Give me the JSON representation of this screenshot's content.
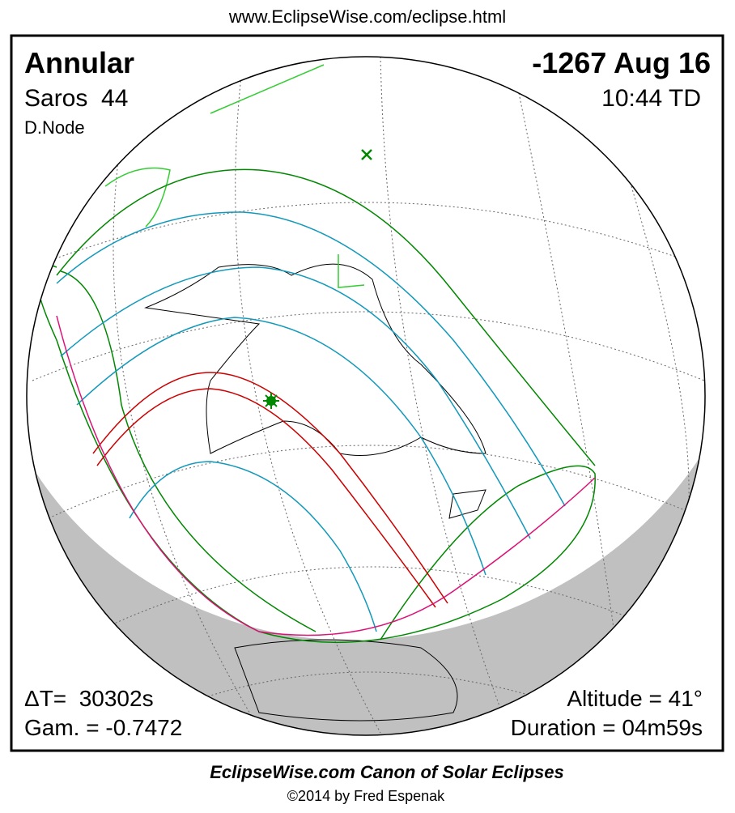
{
  "header": {
    "url": "www.EclipseWise.com/eclipse.html"
  },
  "map": {
    "eclipse_type": "Annular",
    "date": "-1267 Aug 16",
    "saros": "Saros  44",
    "time": "10:44 TD",
    "node": "D.Node",
    "delta_t": "ΔT=  30302s",
    "gamma": "Gam. = -0.7472",
    "altitude": "Altitude = 41°",
    "duration": "Duration = 04m59s"
  },
  "footer": {
    "title": "EclipseWise.com Canon of Solar Eclipses",
    "copyright": "©2014 by Fred Espenak"
  }
}
